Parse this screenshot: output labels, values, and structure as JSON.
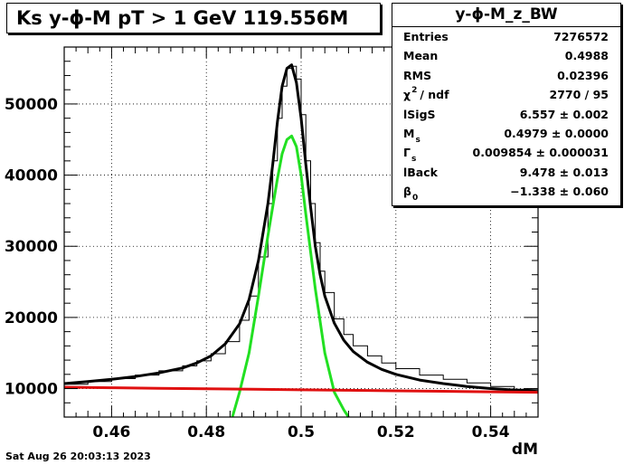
{
  "chart_data": {
    "type": "line",
    "title": "Ks y-ϕ-M pT > 1 GeV  119.556M",
    "xlabel": "dM",
    "ylabel": "",
    "xlim": [
      0.45,
      0.55
    ],
    "ylim": [
      6000,
      58000
    ],
    "x_ticks": [
      0.46,
      0.48,
      0.5,
      0.52,
      0.54
    ],
    "x_tick_labels": [
      "0.46",
      "0.48",
      "0.5",
      "0.52",
      "0.54"
    ],
    "y_ticks": [
      10000,
      20000,
      30000,
      40000,
      50000
    ],
    "y_tick_labels": [
      "10000",
      "20000",
      "30000",
      "40000",
      "50000"
    ],
    "grid": true,
    "legend": "none",
    "series": [
      {
        "style": "histogram",
        "color": "#000000",
        "x": [
          0.45,
          0.455,
          0.46,
          0.465,
          0.47,
          0.475,
          0.478,
          0.481,
          0.484,
          0.487,
          0.489,
          0.491,
          0.493,
          0.494,
          0.495,
          0.496,
          0.497,
          0.498,
          0.499,
          0.5,
          0.501,
          0.502,
          0.503,
          0.504,
          0.505,
          0.507,
          0.509,
          0.511,
          0.514,
          0.517,
          0.52,
          0.525,
          0.53,
          0.535,
          0.54,
          0.545,
          0.55
        ],
        "y": [
          10600,
          11000,
          11400,
          11900,
          12500,
          13200,
          13900,
          14900,
          16600,
          19600,
          23000,
          28500,
          36000,
          42000,
          48000,
          52500,
          55000,
          55300,
          53500,
          48500,
          42000,
          36000,
          30500,
          26500,
          23500,
          19800,
          17600,
          16000,
          14600,
          13600,
          12800,
          11900,
          11300,
          10800,
          10300,
          9900,
          8800
        ]
      },
      {
        "style": "fit-total",
        "color": "#000000",
        "x": [
          0.45,
          0.455,
          0.46,
          0.465,
          0.47,
          0.475,
          0.478,
          0.481,
          0.484,
          0.487,
          0.489,
          0.491,
          0.493,
          0.494,
          0.495,
          0.496,
          0.497,
          0.498,
          0.499,
          0.5,
          0.501,
          0.502,
          0.503,
          0.504,
          0.505,
          0.507,
          0.509,
          0.511,
          0.514,
          0.517,
          0.52,
          0.525,
          0.53,
          0.535,
          0.54,
          0.545,
          0.55
        ],
        "y": [
          10700,
          11000,
          11300,
          11700,
          12200,
          12900,
          13600,
          14600,
          16300,
          19100,
          22500,
          28000,
          36000,
          41500,
          47500,
          52500,
          55000,
          55500,
          53000,
          48000,
          41500,
          35500,
          30000,
          26000,
          23000,
          19200,
          16800,
          15200,
          13700,
          12700,
          12000,
          11200,
          10700,
          10300,
          10000,
          9800,
          9600
        ]
      },
      {
        "style": "fit-signal",
        "color": "#22e022",
        "x": [
          0.4855,
          0.487,
          0.489,
          0.491,
          0.493,
          0.495,
          0.496,
          0.497,
          0.498,
          0.499,
          0.5,
          0.501,
          0.503,
          0.505,
          0.507,
          0.509,
          0.51
        ],
        "y": [
          6000,
          9500,
          15000,
          23000,
          31500,
          39500,
          43000,
          45000,
          45500,
          44000,
          40000,
          34500,
          24000,
          15000,
          9500,
          7000,
          6000
        ]
      },
      {
        "style": "fit-background",
        "color": "#e01010",
        "x": [
          0.45,
          0.46,
          0.47,
          0.48,
          0.49,
          0.5,
          0.51,
          0.52,
          0.53,
          0.54,
          0.55
        ],
        "y": [
          10200,
          10120,
          10040,
          9970,
          9900,
          9830,
          9760,
          9690,
          9620,
          9550,
          9480
        ]
      }
    ]
  },
  "stats": {
    "name": "y-ϕ-M_z_BW",
    "rows": [
      {
        "label": "Entries",
        "value": "7276572"
      },
      {
        "label": "Mean",
        "value": "0.4988"
      },
      {
        "label": "RMS",
        "value": "0.02396"
      },
      {
        "label": "χ",
        "sup": "2",
        "rest": "/ ndf",
        "value": "2770 / 95"
      },
      {
        "label": "lSigS",
        "value": "6.557 ± 0.002"
      },
      {
        "label": "M",
        "sub": "s",
        "value": "0.4979 ± 0.0000"
      },
      {
        "label": "Γ",
        "sub": "s",
        "value": "0.009854 ± 0.000031"
      },
      {
        "label": "lBack",
        "value": "9.478 ± 0.013"
      },
      {
        "label": "β",
        "sub": "0",
        "value": "−1.338 ± 0.060"
      }
    ]
  },
  "footer": {
    "datestamp": "Sat Aug 26 20:03:13 2023"
  }
}
